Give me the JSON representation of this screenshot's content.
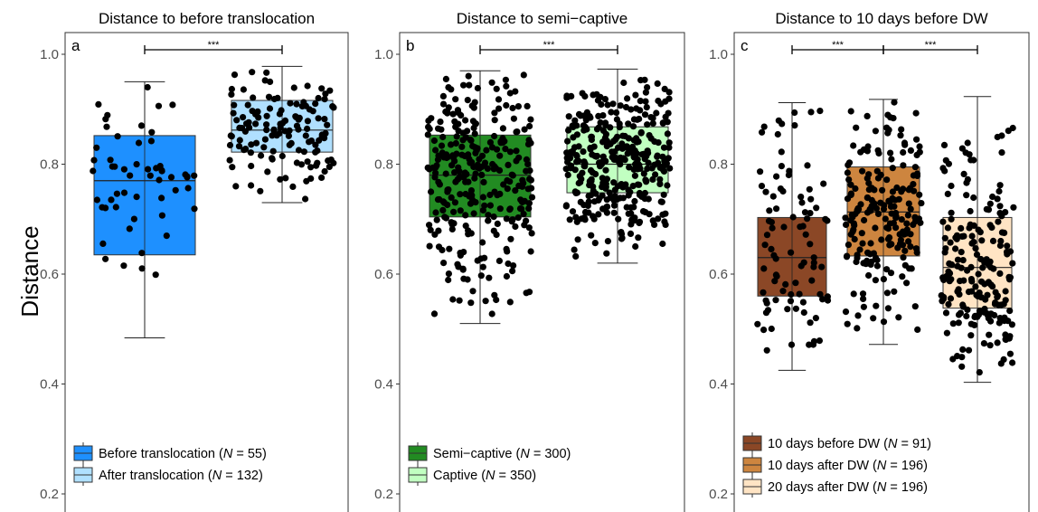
{
  "chart_data": {
    "type": "box",
    "ylabel": "Distance",
    "yticks": [
      0.2,
      0.4,
      0.6,
      0.8,
      1.0
    ],
    "ylim": [
      0.18,
      1.07
    ],
    "panels": [
      {
        "label": "a",
        "title": "Distance to before translocation",
        "significance": [
          {
            "from": 0,
            "to": 1,
            "text": "***"
          }
        ],
        "groups": [
          {
            "legend": "Before translocation",
            "n_text": "55",
            "color": "#1e90ff",
            "min": 0.484,
            "q1": 0.635,
            "median": 0.77,
            "q3": 0.852,
            "max": 0.95,
            "n_points": 55
          },
          {
            "legend": "After translocation",
            "n_text": "132",
            "color": "#b0e0ff",
            "min": 0.73,
            "q1": 0.822,
            "median": 0.862,
            "q3": 0.916,
            "max": 0.978,
            "n_points": 132
          }
        ]
      },
      {
        "label": "b",
        "title": "Distance to semi−captive",
        "significance": [
          {
            "from": 0,
            "to": 1,
            "text": "***"
          }
        ],
        "groups": [
          {
            "legend": "Semi−captive",
            "n_text": "300",
            "color": "#228b22",
            "min": 0.51,
            "q1": 0.704,
            "median": 0.78,
            "q3": 0.853,
            "max": 0.97,
            "n_points": 300
          },
          {
            "legend": "Captive",
            "n_text": "350",
            "color": "#c1ffc1",
            "min": 0.62,
            "q1": 0.748,
            "median": 0.8,
            "q3": 0.868,
            "max": 0.973,
            "n_points": 350
          }
        ]
      },
      {
        "label": "c",
        "title": "Distance to 10 days before DW",
        "significance": [
          {
            "from": 0,
            "to": 1,
            "text": "***"
          },
          {
            "from": 1,
            "to": 2,
            "text": "***"
          }
        ],
        "groups": [
          {
            "legend": "10 days before DW",
            "n_text": "91",
            "color": "#8b4726",
            "min": 0.425,
            "q1": 0.56,
            "median": 0.63,
            "q3": 0.703,
            "max": 0.912,
            "n_points": 91
          },
          {
            "legend": "10 days after DW",
            "n_text": "196",
            "color": "#cd853f",
            "min": 0.472,
            "q1": 0.633,
            "median": 0.713,
            "q3": 0.795,
            "max": 0.918,
            "n_points": 196
          },
          {
            "legend": "20 days after DW",
            "n_text": "196",
            "color": "#ffe4c4",
            "min": 0.403,
            "q1": 0.538,
            "median": 0.612,
            "q3": 0.703,
            "max": 0.923,
            "n_points": 196
          }
        ]
      }
    ]
  }
}
